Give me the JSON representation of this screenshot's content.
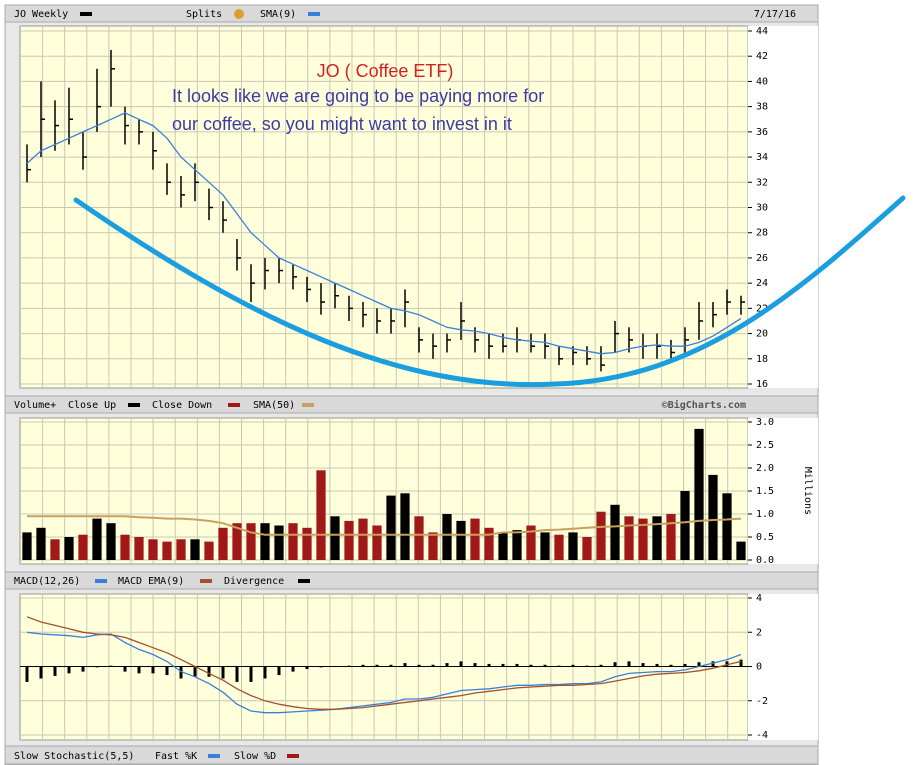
{
  "annotations": [
    "JO  ( Coffee ETF)",
    "It looks like we are going to be paying more for",
    "our coffee, so you might want to invest in it"
  ],
  "chart_data": [
    {
      "type": "ohlc",
      "date": "7/17/16",
      "splits": {
        "name": "Splits",
        "color": "#d9a030"
      },
      "ylim": [
        16,
        44
      ],
      "yticks": [
        16,
        18,
        20,
        22,
        24,
        26,
        28,
        30,
        32,
        34,
        36,
        38,
        40,
        42,
        44
      ],
      "grid": true,
      "series": [
        {
          "name": "JO Weekly",
          "color": "#000000",
          "high": [
            35,
            40,
            38.5,
            39.5,
            36,
            41,
            42.5,
            38,
            37,
            36,
            33.5,
            32.5,
            33.5,
            31.5,
            30.5,
            27.5,
            25.5,
            26,
            26,
            25.5,
            24.5,
            24,
            24,
            23,
            22.5,
            22,
            22,
            23.5,
            20.5,
            20,
            20,
            22.5,
            20.5,
            20,
            20,
            20.5,
            20,
            20,
            19,
            19,
            19,
            19,
            21,
            20.5,
            20,
            20,
            19.5,
            20.5,
            22.5,
            22.5,
            23.5,
            23
          ],
          "low": [
            32,
            34,
            34.5,
            35,
            33,
            36,
            38,
            35,
            35,
            33,
            31,
            30,
            30.5,
            29,
            28,
            25,
            22.5,
            23.5,
            24,
            23.5,
            22.5,
            21.5,
            22,
            21,
            20.5,
            20,
            20,
            20.5,
            18.5,
            18,
            18.5,
            19.5,
            18.5,
            18,
            18.5,
            18.5,
            18.5,
            18,
            17.5,
            17.5,
            17.5,
            17,
            18.5,
            18.5,
            18,
            18,
            18,
            18.5,
            19.5,
            20.5,
            21.5,
            21.5
          ],
          "values": [
            33,
            37,
            36.5,
            37,
            34,
            38,
            41,
            36.5,
            36,
            34.5,
            32,
            31,
            32,
            30,
            29,
            26,
            24,
            25,
            25,
            24.5,
            23.5,
            22.5,
            23,
            22,
            21.5,
            21,
            21,
            22.5,
            19.5,
            19,
            19.5,
            21,
            19.5,
            19,
            19,
            19.5,
            19,
            19,
            18,
            18.5,
            18,
            17.5,
            20,
            19.5,
            19,
            19,
            18.5,
            19.5,
            21,
            21.5,
            22.5,
            22.5
          ]
        },
        {
          "name": "SMA(9)",
          "color": "#3b7fd9",
          "values": [
            33.5,
            34.5,
            35,
            35.5,
            36,
            36.5,
            37,
            37.5,
            37,
            36.5,
            35.5,
            34,
            33,
            32,
            31,
            29.5,
            28,
            27,
            26,
            25.5,
            25,
            24.5,
            24,
            23.5,
            23,
            22.5,
            22,
            21.8,
            21.5,
            21,
            20.5,
            20.3,
            20.2,
            20,
            19.7,
            19.5,
            19.4,
            19.3,
            19,
            18.8,
            18.6,
            18.4,
            18.5,
            18.8,
            19,
            19.1,
            19,
            19,
            19.3,
            19.8,
            20.5,
            21.2
          ]
        }
      ]
    },
    {
      "type": "bar",
      "title": "Volume+",
      "y_label": "Millions",
      "credit": "©BigCharts.com",
      "ylim": [
        0,
        3
      ],
      "yticks": [
        {
          "value": 0,
          "label": "0.0"
        },
        0.5,
        {
          "value": 1,
          "label": "1.0"
        },
        1.5,
        {
          "value": 2,
          "label": "2.0"
        },
        2.5,
        {
          "value": 3,
          "label": "3.0"
        }
      ],
      "series": [
        {
          "name": "Close Up",
          "color": "#000000",
          "values": [
            0.6,
            0.7,
            null,
            0.5,
            null,
            0.9,
            0.8,
            null,
            null,
            null,
            null,
            null,
            0.45,
            null,
            null,
            null,
            null,
            0.8,
            0.75,
            null,
            null,
            null,
            0.95,
            null,
            null,
            null,
            1.4,
            1.45,
            null,
            null,
            1.0,
            0.85,
            null,
            null,
            0.6,
            0.65,
            null,
            0.6,
            null,
            0.6,
            null,
            null,
            1.2,
            null,
            null,
            0.95,
            null,
            1.5,
            2.85,
            1.85,
            1.45,
            0.4
          ]
        },
        {
          "name": "Close Down",
          "color": "#a01818",
          "values": [
            null,
            null,
            0.45,
            null,
            0.55,
            null,
            null,
            0.55,
            0.5,
            0.45,
            0.4,
            0.45,
            null,
            0.4,
            0.7,
            0.8,
            0.8,
            null,
            null,
            0.8,
            0.7,
            1.95,
            null,
            0.85,
            0.9,
            0.75,
            null,
            null,
            0.95,
            0.6,
            null,
            null,
            0.9,
            0.7,
            null,
            null,
            0.75,
            null,
            0.55,
            null,
            0.5,
            1.05,
            null,
            0.95,
            0.9,
            null,
            1.0,
            null,
            null,
            null,
            null,
            null
          ]
        },
        {
          "name": "SMA(50)",
          "color": "#c8a060",
          "line": true,
          "values": [
            0.95,
            0.95,
            0.95,
            0.95,
            0.95,
            0.95,
            0.95,
            0.95,
            0.93,
            0.92,
            0.9,
            0.9,
            0.88,
            0.85,
            0.8,
            0.7,
            0.6,
            0.55,
            0.55,
            0.55,
            0.55,
            0.55,
            0.55,
            0.55,
            0.55,
            0.55,
            0.55,
            0.55,
            0.55,
            0.55,
            0.55,
            0.55,
            0.55,
            0.55,
            0.6,
            0.6,
            0.62,
            0.65,
            0.66,
            0.68,
            0.7,
            0.72,
            0.73,
            0.75,
            0.76,
            0.78,
            0.8,
            0.82,
            0.85,
            0.87,
            0.88,
            0.9
          ]
        }
      ]
    },
    {
      "type": "macd",
      "ylim": [
        -4,
        4
      ],
      "yticks": [
        -4,
        -2,
        0,
        2,
        4
      ],
      "series": [
        {
          "name": "MACD(12,26)",
          "color": "#3b7fd9",
          "values": [
            2.0,
            1.9,
            1.85,
            1.8,
            1.7,
            1.85,
            1.9,
            1.4,
            1.0,
            0.7,
            0.3,
            -0.3,
            -0.6,
            -1.0,
            -1.5,
            -2.2,
            -2.6,
            -2.7,
            -2.7,
            -2.65,
            -2.6,
            -2.55,
            -2.5,
            -2.4,
            -2.3,
            -2.2,
            -2.1,
            -1.9,
            -1.9,
            -1.8,
            -1.6,
            -1.4,
            -1.35,
            -1.3,
            -1.2,
            -1.1,
            -1.1,
            -1.05,
            -1.05,
            -1.0,
            -1.0,
            -0.9,
            -0.6,
            -0.4,
            -0.35,
            -0.3,
            -0.3,
            -0.2,
            0.0,
            0.2,
            0.4,
            0.7
          ]
        },
        {
          "name": "MACD EMA(9)",
          "color": "#a0522d",
          "values": [
            2.9,
            2.6,
            2.4,
            2.2,
            2.0,
            1.9,
            1.85,
            1.7,
            1.4,
            1.1,
            0.8,
            0.4,
            0.0,
            -0.4,
            -0.8,
            -1.3,
            -1.7,
            -2.0,
            -2.2,
            -2.35,
            -2.45,
            -2.5,
            -2.5,
            -2.45,
            -2.4,
            -2.3,
            -2.2,
            -2.1,
            -2.0,
            -1.9,
            -1.8,
            -1.7,
            -1.55,
            -1.45,
            -1.35,
            -1.25,
            -1.2,
            -1.15,
            -1.1,
            -1.1,
            -1.05,
            -1.0,
            -0.85,
            -0.7,
            -0.55,
            -0.45,
            -0.4,
            -0.35,
            -0.25,
            -0.1,
            0.1,
            0.3
          ]
        },
        {
          "name": "Divergence",
          "color": "#000000",
          "bars": true,
          "values": [
            -0.9,
            -0.7,
            -0.55,
            -0.4,
            -0.3,
            -0.05,
            0.05,
            -0.3,
            -0.4,
            -0.4,
            -0.5,
            -0.7,
            -0.6,
            -0.6,
            -0.7,
            -0.9,
            -0.9,
            -0.7,
            -0.5,
            -0.3,
            -0.15,
            -0.05,
            0.0,
            0.05,
            0.1,
            0.1,
            0.1,
            0.2,
            0.1,
            0.1,
            0.2,
            0.3,
            0.2,
            0.15,
            0.15,
            0.15,
            0.1,
            0.1,
            0.05,
            0.1,
            0.05,
            0.1,
            0.25,
            0.3,
            0.2,
            0.15,
            0.1,
            0.15,
            0.25,
            0.3,
            0.3,
            0.4
          ]
        }
      ]
    },
    {
      "type": "legend",
      "title": "Slow Stochastic(5,5)",
      "series": [
        {
          "name": "Fast %K",
          "color": "#3b7fd9"
        },
        {
          "name": "Slow %D",
          "color": "#a01818"
        }
      ]
    }
  ]
}
